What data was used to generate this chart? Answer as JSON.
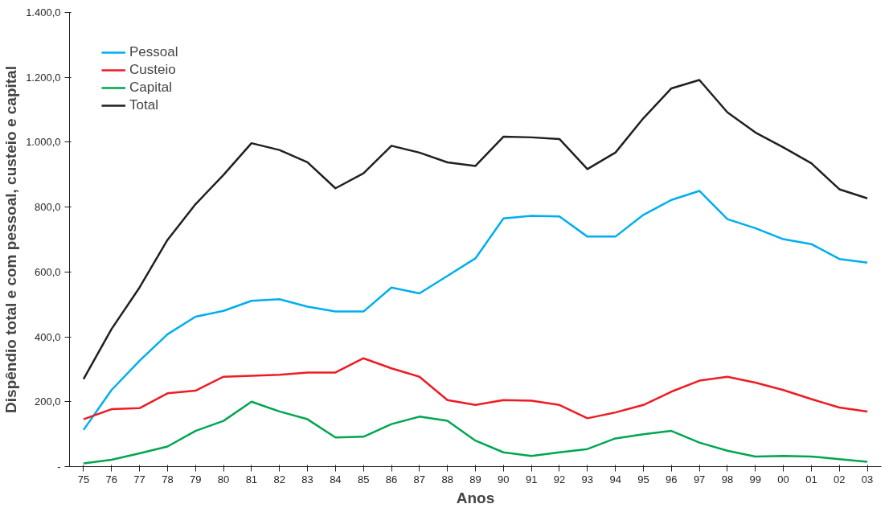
{
  "chart_data": {
    "type": "line",
    "xlabel": "Anos",
    "ylabel": "Dispêndio total e com pessoal, custeio e capital",
    "categories": [
      "75",
      "76",
      "77",
      "78",
      "79",
      "80",
      "81",
      "82",
      "83",
      "84",
      "85",
      "86",
      "87",
      "88",
      "89",
      "90",
      "91",
      "92",
      "93",
      "94",
      "95",
      "96",
      "97",
      "98",
      "99",
      "00",
      "01",
      "02",
      "03"
    ],
    "series": [
      {
        "name": "Pessoal",
        "color": "#00aeef",
        "values": [
          113,
          236,
          326,
          408,
          462,
          480,
          511,
          516,
          493,
          478,
          478,
          552,
          534,
          588,
          642,
          765,
          773,
          771,
          709,
          709,
          776,
          822,
          850,
          763,
          735,
          701,
          686,
          640,
          629
        ]
      },
      {
        "name": "Custeio",
        "color": "#ed1c24",
        "values": [
          146,
          177,
          180,
          226,
          234,
          277,
          280,
          283,
          290,
          290,
          334,
          303,
          277,
          205,
          190,
          205,
          203,
          190,
          149,
          167,
          190,
          231,
          265,
          277,
          259,
          236,
          208,
          182,
          170
        ]
      },
      {
        "name": "Capital",
        "color": "#00a651",
        "values": [
          10,
          21,
          41,
          62,
          110,
          141,
          200,
          170,
          146,
          90,
          92,
          131,
          154,
          141,
          80,
          44,
          33,
          44,
          54,
          87,
          100,
          110,
          74,
          49,
          31,
          33,
          31,
          23,
          15
        ]
      },
      {
        "name": "Total",
        "color": "#231f20",
        "values": [
          270,
          424,
          552,
          699,
          809,
          899,
          997,
          976,
          938,
          858,
          904,
          989,
          968,
          938,
          927,
          1017,
          1015,
          1010,
          917,
          968,
          1074,
          1166,
          1192,
          1092,
          1030,
          984,
          935,
          855,
          827
        ]
      }
    ],
    "ylim": [
      0,
      1400
    ],
    "yticks": [
      {
        "value": 0,
        "label": "-"
      },
      {
        "value": 200,
        "label": "200,0"
      },
      {
        "value": 400,
        "label": "400,0"
      },
      {
        "value": 600,
        "label": "600,0"
      },
      {
        "value": 800,
        "label": "800,0"
      },
      {
        "value": 1000,
        "label": "1.000,0"
      },
      {
        "value": 1200,
        "label": "1.200,0"
      },
      {
        "value": 1400,
        "label": "1.400,0"
      }
    ],
    "grid": false,
    "legend": "top left",
    "marker": "none",
    "line_style": "solid"
  }
}
